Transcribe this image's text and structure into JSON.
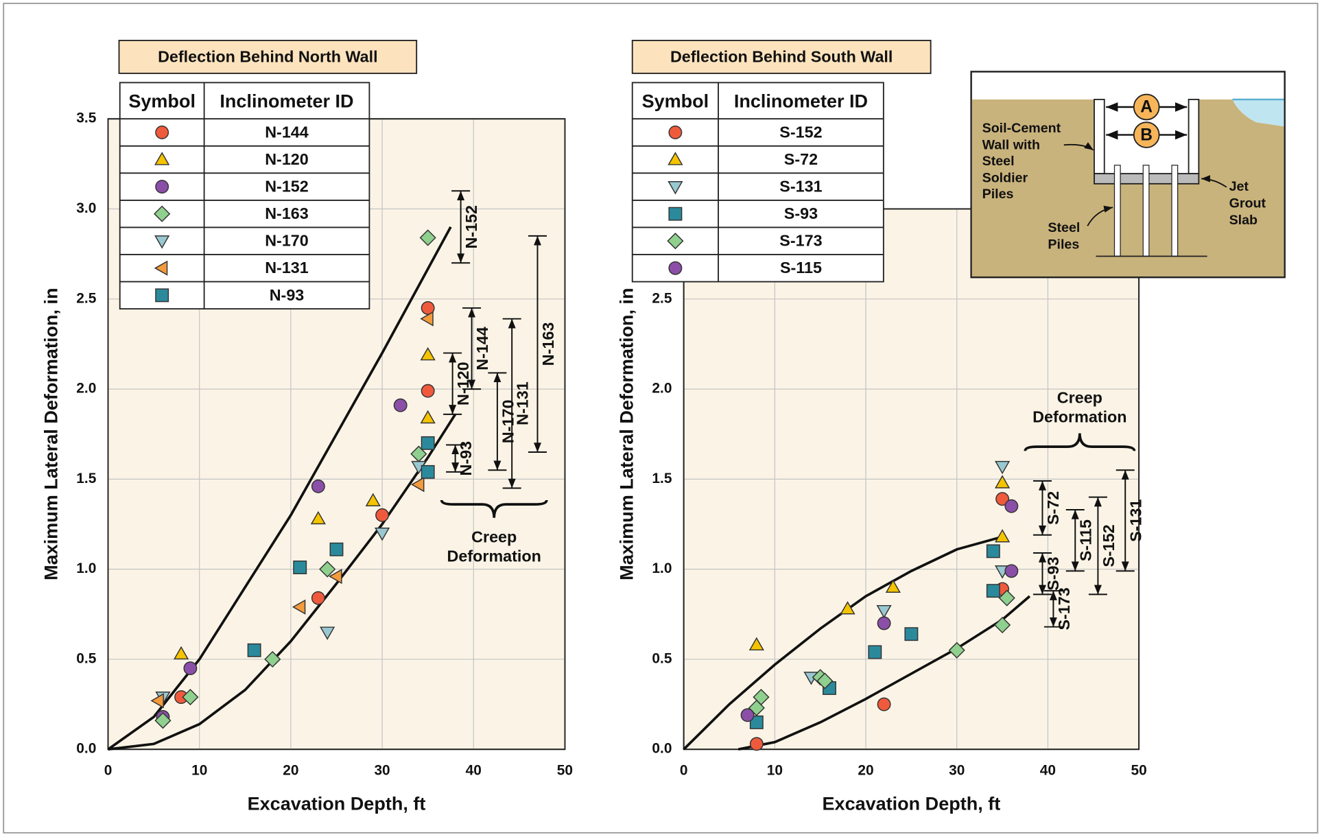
{
  "chart_data": [
    {
      "type": "scatter",
      "title": "Deflection Behind North Wall",
      "xlabel": "Excavation Depth, ft",
      "ylabel": "Maximum Lateral Deformation, in",
      "xlim": [
        0,
        50
      ],
      "ylim": [
        0,
        3.5
      ],
      "xticks": [
        0,
        10,
        20,
        30,
        40,
        50
      ],
      "yticks": [
        {
          "value": 0,
          "label": "0.0"
        },
        0.5,
        {
          "value": 1,
          "label": "1.0"
        },
        1.5,
        {
          "value": 2,
          "label": "2.0"
        },
        2.5,
        {
          "value": 3,
          "label": "3.0"
        },
        3.5
      ],
      "grid": true,
      "legend_headers": [
        "Symbol",
        "Inclinometer ID"
      ],
      "series": [
        {
          "name": "N-144",
          "marker": "circle",
          "color": "#f05a3c",
          "x": [
            8,
            23,
            30,
            35,
            35
          ],
          "values": [
            0.29,
            0.84,
            1.3,
            1.99,
            2.45
          ]
        },
        {
          "name": "N-120",
          "marker": "triangle-up",
          "color": "#f5c400",
          "x": [
            8,
            23,
            29,
            35,
            35
          ],
          "values": [
            0.53,
            1.28,
            1.38,
            1.84,
            2.19
          ]
        },
        {
          "name": "N-152",
          "marker": "circle",
          "color": "#8b4fa8",
          "x": [
            6,
            9,
            23,
            32
          ],
          "values": [
            0.18,
            0.45,
            1.46,
            1.91
          ]
        },
        {
          "name": "N-163",
          "marker": "diamond",
          "color": "#8fd08f",
          "x": [
            6,
            9,
            18,
            24,
            34,
            35
          ],
          "values": [
            0.16,
            0.29,
            0.5,
            1.0,
            1.64,
            2.84
          ]
        },
        {
          "name": "N-170",
          "marker": "triangle-down",
          "color": "#9ac8d0",
          "x": [
            6,
            24,
            30,
            34
          ],
          "values": [
            0.29,
            0.65,
            1.2,
            1.57
          ]
        },
        {
          "name": "N-131",
          "marker": "triangle-left",
          "color": "#f39a3c",
          "x": [
            5.5,
            21,
            25,
            34,
            35
          ],
          "values": [
            0.27,
            0.79,
            0.96,
            1.47,
            2.39
          ]
        },
        {
          "name": "N-93",
          "marker": "square",
          "color": "#2a8a9c",
          "x": [
            16,
            21,
            25,
            35,
            35
          ],
          "values": [
            0.55,
            1.01,
            1.11,
            1.54,
            1.7
          ]
        }
      ],
      "curves": [
        {
          "x": [
            0,
            5,
            10,
            15,
            20,
            25,
            30,
            37.5
          ],
          "y": [
            0,
            0.18,
            0.5,
            0.9,
            1.3,
            1.75,
            2.2,
            2.9
          ]
        },
        {
          "x": [
            0,
            5,
            10,
            15,
            20,
            25,
            30,
            35,
            38
          ],
          "y": [
            0,
            0.03,
            0.14,
            0.33,
            0.6,
            0.92,
            1.25,
            1.62,
            1.86
          ]
        }
      ],
      "brackets": [
        {
          "label": "N-152",
          "x": 38.6,
          "y": [
            2.7,
            3.1
          ]
        },
        {
          "label": "N-144",
          "x": 39.8,
          "y": [
            2.0,
            2.45
          ]
        },
        {
          "label": "N-120",
          "x": 37.7,
          "y": [
            1.86,
            2.2
          ]
        },
        {
          "label": "N-170",
          "x": 42.6,
          "y": [
            1.55,
            2.09
          ]
        },
        {
          "label": "N-93",
          "x": 38.0,
          "y": [
            1.54,
            1.69
          ]
        },
        {
          "label": "N-131",
          "x": 44.2,
          "y": [
            1.45,
            2.39
          ]
        },
        {
          "label": "N-163",
          "x": 47.0,
          "y": [
            1.65,
            2.85
          ]
        }
      ],
      "creep": {
        "label": [
          "Creep",
          "Deformation"
        ],
        "x": [
          36.5,
          48
        ],
        "y": 1.36,
        "brace": "down"
      }
    },
    {
      "type": "scatter",
      "title": "Deflection Behind South Wall",
      "xlabel": "Excavation Depth, ft",
      "ylabel": "Maximum Lateral Deformation, in",
      "xlim": [
        0,
        50
      ],
      "ylim": [
        0,
        3
      ],
      "xticks": [
        0,
        10,
        20,
        30,
        40,
        50
      ],
      "yticks": [
        {
          "value": 0,
          "label": "0.0"
        },
        0.5,
        {
          "value": 1,
          "label": "1.0"
        },
        1.5,
        {
          "value": 2,
          "label": "2.0"
        },
        2.5
      ],
      "grid": true,
      "legend_headers": [
        "Symbol",
        "Inclinometer ID"
      ],
      "series": [
        {
          "name": "S-152",
          "marker": "circle",
          "color": "#f05a3c",
          "x": [
            8,
            22,
            35,
            35
          ],
          "values": [
            0.03,
            0.25,
            0.89,
            1.39
          ]
        },
        {
          "name": "S-72",
          "marker": "triangle-up",
          "color": "#f5c400",
          "x": [
            8,
            18,
            23,
            35,
            35
          ],
          "values": [
            0.58,
            0.78,
            0.9,
            1.18,
            1.48
          ]
        },
        {
          "name": "S-131",
          "marker": "triangle-down",
          "color": "#9ac8d0",
          "x": [
            14,
            22,
            35,
            35
          ],
          "values": [
            0.4,
            0.77,
            0.99,
            1.57
          ]
        },
        {
          "name": "S-93",
          "marker": "square",
          "color": "#2a8a9c",
          "x": [
            8,
            16,
            21,
            25,
            34,
            34
          ],
          "values": [
            0.15,
            0.34,
            0.54,
            0.64,
            0.88,
            1.1
          ]
        },
        {
          "name": "S-173",
          "marker": "diamond",
          "color": "#8fd08f",
          "x": [
            8,
            8.5,
            15,
            15.5,
            30,
            35,
            35.5
          ],
          "values": [
            0.23,
            0.29,
            0.4,
            0.38,
            0.55,
            0.69,
            0.84
          ]
        },
        {
          "name": "S-115",
          "marker": "circle",
          "color": "#8b4fa8",
          "x": [
            7,
            22,
            36,
            36
          ],
          "values": [
            0.19,
            0.7,
            0.99,
            1.35
          ]
        }
      ],
      "curves": [
        {
          "x": [
            0,
            5,
            10,
            15,
            20,
            25,
            30,
            35
          ],
          "y": [
            0,
            0.25,
            0.47,
            0.67,
            0.85,
            0.99,
            1.11,
            1.18
          ]
        },
        {
          "x": [
            6,
            10,
            15,
            20,
            25,
            30,
            35,
            38
          ],
          "y": [
            0,
            0.04,
            0.15,
            0.28,
            0.42,
            0.56,
            0.72,
            0.85
          ]
        }
      ],
      "brackets": [
        {
          "label": "S-72",
          "x": 39.4,
          "y": [
            1.19,
            1.49
          ]
        },
        {
          "label": "S-115",
          "x": 43.0,
          "y": [
            0.99,
            1.33
          ]
        },
        {
          "label": "S-152",
          "x": 45.5,
          "y": [
            0.86,
            1.4
          ]
        },
        {
          "label": "S-131",
          "x": 48.5,
          "y": [
            0.99,
            1.55
          ]
        },
        {
          "label": "S-93",
          "x": 39.4,
          "y": [
            0.86,
            1.09
          ]
        },
        {
          "label": "S-173",
          "x": 40.6,
          "y": [
            0.68,
            0.88
          ]
        }
      ],
      "creep": {
        "label": [
          "Creep",
          "Deformation"
        ],
        "x": [
          37.5,
          49.5
        ],
        "y": 1.68,
        "brace": "up"
      }
    }
  ],
  "diagram": {
    "a": "A",
    "b": "B",
    "wall": [
      "Soil-Cement",
      "Wall with",
      "Steel",
      "Soldier",
      "Piles"
    ],
    "slab": [
      "Jet",
      "Grout",
      "Slab"
    ],
    "piles": [
      "Steel",
      "Piles"
    ]
  }
}
